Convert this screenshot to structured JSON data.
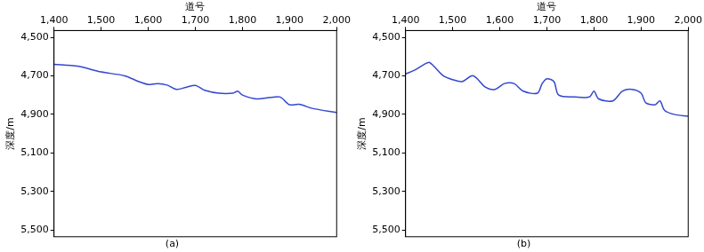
{
  "chart_data": [
    {
      "type": "line",
      "title": "(a)",
      "x_label": "道号",
      "y_label": "深度/m",
      "xlim": [
        1400,
        2000
      ],
      "xticks": [
        1400,
        1500,
        1600,
        1700,
        1800,
        1900,
        2000
      ],
      "ylim": [
        5535,
        4465
      ],
      "yticks": [
        4500,
        4700,
        4900,
        5100,
        5300,
        5500
      ],
      "grid": false,
      "x": [
        1400,
        1450,
        1500,
        1550,
        1580,
        1600,
        1620,
        1640,
        1660,
        1680,
        1700,
        1720,
        1750,
        1780,
        1790,
        1800,
        1830,
        1860,
        1880,
        1900,
        1920,
        1950,
        2000
      ],
      "series": [
        {
          "color": "#3348d0",
          "values": [
            4640,
            4650,
            4680,
            4700,
            4730,
            4745,
            4740,
            4748,
            4770,
            4760,
            4750,
            4775,
            4790,
            4790,
            4780,
            4800,
            4820,
            4812,
            4810,
            4850,
            4848,
            4870,
            4890
          ]
        }
      ]
    },
    {
      "type": "line",
      "title": "(b)",
      "x_label": "道号",
      "y_label": "深度/m",
      "xlim": [
        1400,
        2000
      ],
      "xticks": [
        1400,
        1500,
        1600,
        1700,
        1800,
        1900,
        2000
      ],
      "ylim": [
        5535,
        4465
      ],
      "yticks": [
        4500,
        4700,
        4900,
        5100,
        5300,
        5500
      ],
      "grid": false,
      "x": [
        1400,
        1420,
        1440,
        1450,
        1460,
        1480,
        1500,
        1520,
        1540,
        1550,
        1570,
        1590,
        1610,
        1630,
        1650,
        1680,
        1690,
        1700,
        1715,
        1725,
        1760,
        1790,
        1800,
        1810,
        1840,
        1860,
        1880,
        1900,
        1910,
        1930,
        1940,
        1950,
        1970,
        2000
      ],
      "series": [
        {
          "color": "#3348d0",
          "values": [
            4690,
            4670,
            4640,
            4630,
            4650,
            4700,
            4720,
            4730,
            4700,
            4710,
            4760,
            4770,
            4740,
            4740,
            4780,
            4790,
            4740,
            4715,
            4730,
            4800,
            4810,
            4810,
            4780,
            4820,
            4830,
            4780,
            4770,
            4790,
            4840,
            4850,
            4830,
            4880,
            4900,
            4910
          ]
        }
      ]
    }
  ]
}
